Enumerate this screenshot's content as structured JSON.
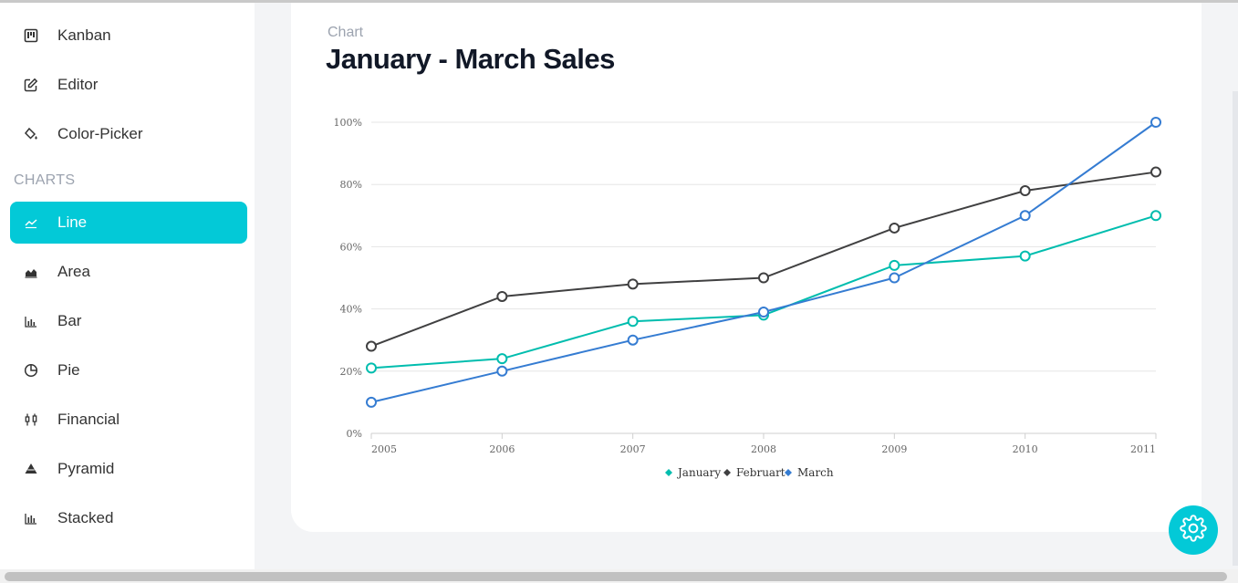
{
  "sidebar": {
    "items_top": [
      {
        "label": "Kanban",
        "icon": "kanban-icon"
      },
      {
        "label": "Editor",
        "icon": "edit-icon"
      },
      {
        "label": "Color-Picker",
        "icon": "paint-bucket-icon"
      }
    ],
    "section": "CHARTS",
    "items_charts": [
      {
        "label": "Line",
        "icon": "line-chart-icon",
        "active": true
      },
      {
        "label": "Area",
        "icon": "area-chart-icon"
      },
      {
        "label": "Bar",
        "icon": "bar-chart-icon"
      },
      {
        "label": "Pie",
        "icon": "pie-chart-icon"
      },
      {
        "label": "Financial",
        "icon": "candlestick-icon"
      },
      {
        "label": "Pyramid",
        "icon": "pyramid-icon"
      },
      {
        "label": "Stacked",
        "icon": "stacked-chart-icon"
      }
    ]
  },
  "card": {
    "subtitle": "Chart",
    "title": "January - March Sales"
  },
  "colors": {
    "accent": "#03c9d7",
    "january": "#00bdae",
    "februart": "#404041",
    "march": "#357cd2"
  },
  "chart_data": {
    "type": "line",
    "x": [
      "2005",
      "2006",
      "2007",
      "2008",
      "2009",
      "2010",
      "2011"
    ],
    "series": [
      {
        "name": "January",
        "values": [
          21,
          24,
          36,
          38,
          54,
          57,
          70
        ]
      },
      {
        "name": "Februart",
        "values": [
          28,
          44,
          48,
          50,
          66,
          78,
          84
        ]
      },
      {
        "name": "March",
        "values": [
          10,
          20,
          30,
          39,
          50,
          70,
          100
        ]
      }
    ],
    "ylim": [
      0,
      100
    ],
    "yticks": [
      "0%",
      "20%",
      "40%",
      "60%",
      "80%",
      "100%"
    ],
    "grid": true,
    "legend": "bottom-center"
  }
}
